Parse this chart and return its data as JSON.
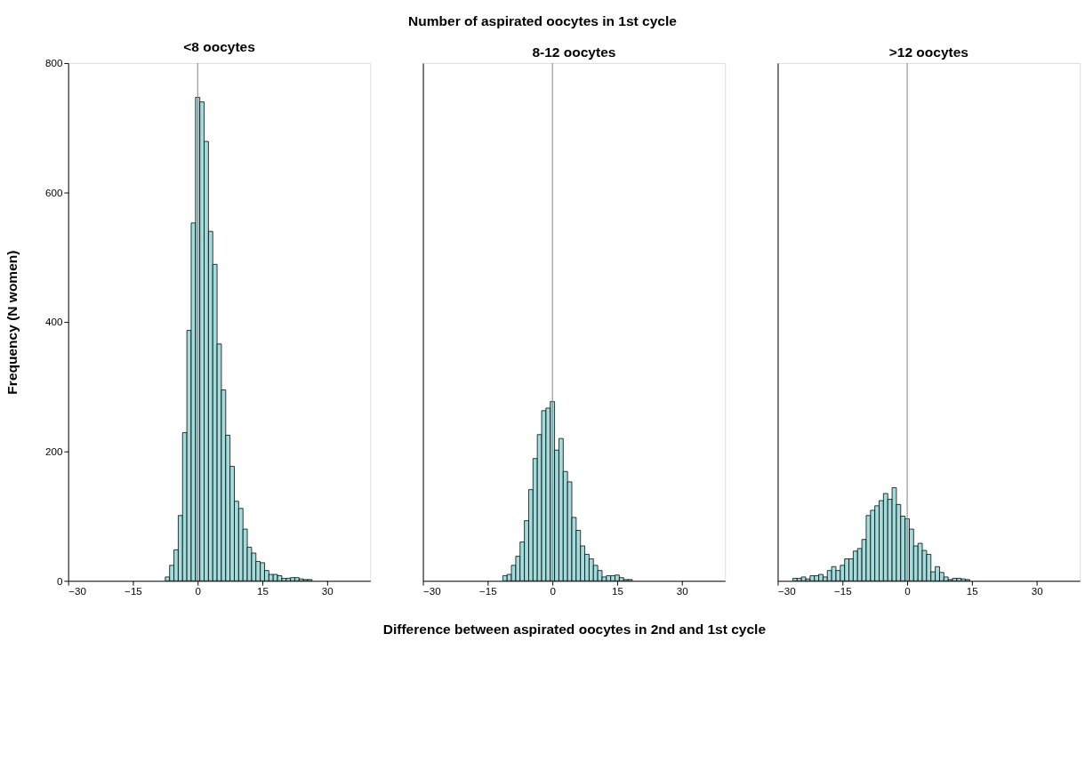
{
  "chart_data": [
    {
      "type": "histogram",
      "title": "<8 oocytes",
      "ylabel": "Frequency (N women)",
      "color": "#a3dcdc",
      "bins": [
        -7.5,
        -6.5,
        -5.5,
        -4.5,
        -3.5,
        -2.5,
        -1.5,
        -0.5,
        0.5,
        1.5,
        2.5,
        3.5,
        4.5,
        5.5,
        6.5,
        7.5,
        8.5,
        9.5,
        10.5,
        11.5,
        12.5,
        13.5,
        14.5,
        15.5,
        16.5,
        17.5,
        18.5,
        19.5,
        20.5,
        21.5,
        22.5,
        23.5,
        24.5,
        25.5,
        26.5
      ],
      "values": [
        6,
        24,
        48,
        101,
        229,
        387,
        553,
        747,
        740,
        679,
        540,
        489,
        366,
        295,
        225,
        177,
        123,
        112,
        80,
        52,
        43,
        30,
        28,
        16,
        10,
        10,
        8,
        4,
        4,
        5,
        5,
        3,
        2,
        2
      ],
      "xlim": [
        -30,
        40
      ],
      "xticks": [
        -30,
        -15,
        0,
        15,
        30
      ],
      "ylim": [
        0,
        800
      ],
      "yticks": [
        0,
        200,
        400,
        600,
        800
      ],
      "ref_lines": [
        {
          "axis": "x",
          "value": 0,
          "color": "#808080"
        }
      ]
    },
    {
      "type": "histogram",
      "title": "8-12 oocytes",
      "xlabel": "Difference between aspirated oocytes in 2nd and 1st cycle",
      "color": "#a3dcdc",
      "annotations": [
        "Number of aspirated oocytes in 1st cycle"
      ],
      "bins": [
        -11.5,
        -10.5,
        -9.5,
        -8.5,
        -7.5,
        -6.5,
        -5.5,
        -4.5,
        -3.5,
        -2.5,
        -1.5,
        -0.5,
        0.5,
        1.5,
        2.5,
        3.5,
        4.5,
        5.5,
        6.5,
        7.5,
        8.5,
        9.5,
        10.5,
        11.5,
        12.5,
        13.5,
        14.5,
        15.5,
        16.5,
        17.5,
        18.5
      ],
      "values": [
        8,
        10,
        24,
        38,
        60,
        93,
        141,
        189,
        226,
        263,
        267,
        277,
        202,
        220,
        169,
        153,
        98,
        78,
        54,
        41,
        34,
        24,
        16,
        6,
        8,
        8,
        9,
        5,
        2,
        2
      ],
      "xlim": [
        -30,
        40
      ],
      "xticks": [
        -30,
        -15,
        0,
        15,
        30
      ],
      "ylim": [
        0,
        800
      ],
      "yticks": [
        0,
        200,
        400,
        600,
        800
      ],
      "tick_labels": "x",
      "ref_lines": [
        {
          "axis": "x",
          "value": 0,
          "color": "#808080"
        }
      ]
    },
    {
      "type": "histogram",
      "title": ">12 oocytes",
      "color": "#a3dcdc",
      "bins": [
        -26.5,
        -25.5,
        -24.5,
        -23.5,
        -22.5,
        -21.5,
        -20.5,
        -19.5,
        -18.5,
        -17.5,
        -16.5,
        -15.5,
        -14.5,
        -13.5,
        -12.5,
        -11.5,
        -10.5,
        -9.5,
        -8.5,
        -7.5,
        -6.5,
        -5.5,
        -4.5,
        -3.5,
        -2.5,
        -1.5,
        -0.5,
        0.5,
        1.5,
        2.5,
        3.5,
        4.5,
        5.5,
        6.5,
        7.5,
        8.5,
        9.5,
        10.5,
        11.5,
        12.5,
        13.5,
        14.5
      ],
      "values": [
        4,
        4,
        6,
        3,
        8,
        8,
        10,
        6,
        16,
        22,
        16,
        24,
        34,
        34,
        46,
        50,
        64,
        101,
        109,
        116,
        124,
        135,
        126,
        144,
        118,
        100,
        96,
        80,
        54,
        58,
        47,
        41,
        14,
        22,
        13,
        6,
        2,
        4,
        4,
        3,
        2
      ],
      "xlim": [
        -30,
        40
      ],
      "xticks": [
        -30,
        -15,
        0,
        15,
        30
      ],
      "ylim": [
        0,
        800
      ],
      "yticks": [
        0,
        200,
        400,
        600,
        800
      ],
      "tick_labels": "x",
      "ref_lines": [
        {
          "axis": "x",
          "value": 0,
          "color": "#808080"
        }
      ]
    }
  ]
}
